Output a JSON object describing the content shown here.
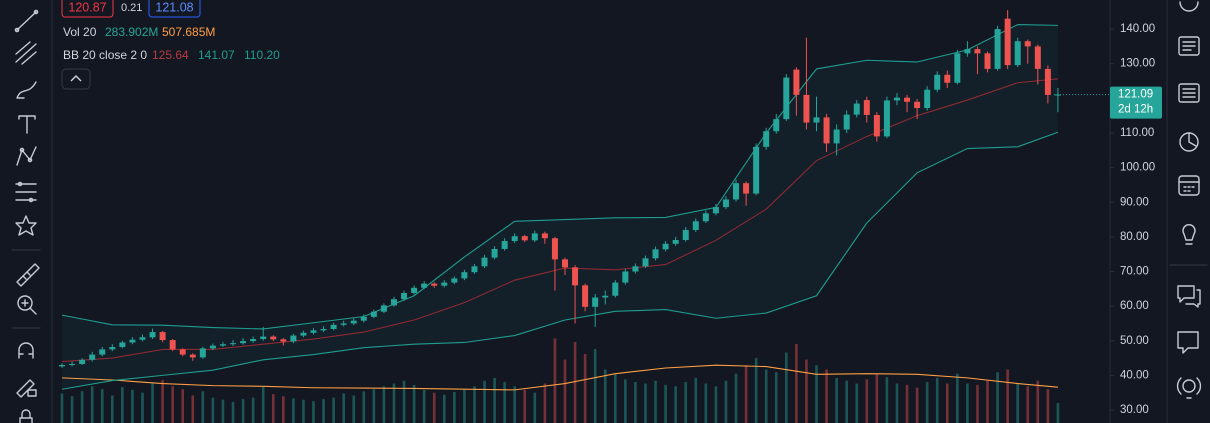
{
  "chart_data": {
    "type": "candlestick",
    "legend": {
      "bid": "120.87",
      "spread": "0.21",
      "ask": "121.08",
      "vol_title": "Vol 20",
      "vol_last": "283.902M",
      "vol_ma": "507.685M",
      "bb_title": "BB 20 close 2 0",
      "bb_basis": "125.64",
      "bb_upper": "141.07",
      "bb_lower": "110.20"
    },
    "countdown": "2d 12h",
    "up_color": "#26a69a",
    "down_color": "#ef5350",
    "ylim": [
      26.25,
      148.4
    ],
    "yticks": [
      {
        "value": 30,
        "label": "30.00"
      },
      {
        "value": 40,
        "label": "40.00"
      },
      {
        "value": 50,
        "label": "50.00"
      },
      {
        "value": 60,
        "label": "60.00"
      },
      {
        "value": 70,
        "label": "70.00"
      },
      {
        "value": 80,
        "label": "80.00"
      },
      {
        "value": 90,
        "label": "90.00"
      },
      {
        "value": 100,
        "label": "100.00"
      },
      {
        "value": 110,
        "label": "110.00"
      },
      {
        "value": 120,
        "label": "120.00"
      },
      {
        "value": 130,
        "label": "130.00"
      },
      {
        "value": 140,
        "label": "140.00"
      }
    ],
    "y2lim": [
      0,
      6000
    ],
    "grid": false,
    "open": [
      42.6,
      43.0,
      43.3,
      44.5,
      46.0,
      47.5,
      48.2,
      49.5,
      50.3,
      51.0,
      52.5,
      50.2,
      47.5,
      46.0,
      45.2,
      47.8,
      48.6,
      49.0,
      49.3,
      49.9,
      50.5,
      51.2,
      50.4,
      49.8,
      51.5,
      52.3,
      53.0,
      53.4,
      54.6,
      55.0,
      55.8,
      56.9,
      58.4,
      60.2,
      62.0,
      63.8,
      65.3,
      66.5,
      65.9,
      66.8,
      68.0,
      69.8,
      71.5,
      74.0,
      76.5,
      78.8,
      80.2,
      79.0,
      81.0,
      79.6,
      73.5,
      71.2,
      66.0,
      59.8,
      62.5,
      63.0,
      66.8,
      70.0,
      71.5,
      73.8,
      76.4,
      78.0,
      79.1,
      82.0,
      84.5,
      86.8,
      88.6,
      90.8,
      95.5,
      92.5,
      106.0,
      110.5,
      114.0,
      128.3,
      121.0,
      113.0,
      114.5,
      107.0,
      111.0,
      115.3,
      119.5,
      115.2,
      109.0,
      119.4,
      120.2,
      119.0,
      117.2,
      122.5,
      126.8,
      124.5,
      133.0,
      134.2,
      133.0,
      128.5,
      143.0,
      129.6,
      136.5,
      135.0,
      128.5,
      121.0
    ],
    "high": [
      43.5,
      44.0,
      45.0,
      46.8,
      48.2,
      49.0,
      50.0,
      51.0,
      51.8,
      53.5,
      52.8,
      50.5,
      47.8,
      46.4,
      48.3,
      49.2,
      49.6,
      50.2,
      50.8,
      51.2,
      54.0,
      51.6,
      50.8,
      52.0,
      52.9,
      53.6,
      54.2,
      55.2,
      55.8,
      56.5,
      57.6,
      59.0,
      60.8,
      62.7,
      64.5,
      66.0,
      67.2,
      66.9,
      67.5,
      68.6,
      70.5,
      72.2,
      74.8,
      77.3,
      79.6,
      81.0,
      80.6,
      81.8,
      81.5,
      80.0,
      74.0,
      71.8,
      66.5,
      63.5,
      64.5,
      67.5,
      70.8,
      72.3,
      74.6,
      77.2,
      78.8,
      80.0,
      82.8,
      85.3,
      87.6,
      89.5,
      91.8,
      96.5,
      96.0,
      107.0,
      111.5,
      115.5,
      127.0,
      129.0,
      137.5,
      120.5,
      115.5,
      112.5,
      116.5,
      119.5,
      120.5,
      116.0,
      120.5,
      121.5,
      121.0,
      119.8,
      123.5,
      127.8,
      128.0,
      134.0,
      136.5,
      135.0,
      133.5,
      141.0,
      145.5,
      137.5,
      137.0,
      135.5,
      129.5,
      123.0
    ],
    "low": [
      42.2,
      42.6,
      43.0,
      44.0,
      45.5,
      47.0,
      47.8,
      49.0,
      49.8,
      50.5,
      49.6,
      47.0,
      45.5,
      44.2,
      44.8,
      47.3,
      48.2,
      48.5,
      48.9,
      49.4,
      50.0,
      49.9,
      48.6,
      49.3,
      51.0,
      51.8,
      52.5,
      53.0,
      54.1,
      54.5,
      55.3,
      56.5,
      58.0,
      59.8,
      61.5,
      63.3,
      64.9,
      65.3,
      65.4,
      66.3,
      67.5,
      69.3,
      71.0,
      73.5,
      76.0,
      78.2,
      78.5,
      78.5,
      78.0,
      64.5,
      69.0,
      55.0,
      58.5,
      54.0,
      60.5,
      62.5,
      66.2,
      69.4,
      71.0,
      73.2,
      75.8,
      77.4,
      78.6,
      81.4,
      84.0,
      86.2,
      88.0,
      90.2,
      89.0,
      92.0,
      105.2,
      109.8,
      113.5,
      115.0,
      111.0,
      110.5,
      104.5,
      103.5,
      110.0,
      114.5,
      113.0,
      107.5,
      108.5,
      118.0,
      116.0,
      114.0,
      116.5,
      121.8,
      123.0,
      124.0,
      132.0,
      127.0,
      127.5,
      128.0,
      128.5,
      129.0,
      130.0,
      124.0,
      118.5,
      116.0
    ],
    "close": [
      43.0,
      43.3,
      44.5,
      46.0,
      47.5,
      48.2,
      49.5,
      50.3,
      51.0,
      52.5,
      50.2,
      47.5,
      46.0,
      45.2,
      47.8,
      48.6,
      49.0,
      49.3,
      49.9,
      50.5,
      51.2,
      50.4,
      49.8,
      51.5,
      52.3,
      53.0,
      53.4,
      54.6,
      55.0,
      55.8,
      56.9,
      58.4,
      60.2,
      62.0,
      63.8,
      65.3,
      66.5,
      65.9,
      66.8,
      68.0,
      69.8,
      71.5,
      74.0,
      76.5,
      78.8,
      80.2,
      79.0,
      81.0,
      79.6,
      73.5,
      71.2,
      66.0,
      59.8,
      62.5,
      63.0,
      66.8,
      70.0,
      71.5,
      73.8,
      76.4,
      78.0,
      79.1,
      82.0,
      84.5,
      86.8,
      88.6,
      90.8,
      95.5,
      92.5,
      106.0,
      110.5,
      114.0,
      126.0,
      121.0,
      113.0,
      114.5,
      107.0,
      111.0,
      115.3,
      118.5,
      115.2,
      109.0,
      119.4,
      120.2,
      119.0,
      117.2,
      122.5,
      126.8,
      124.5,
      133.0,
      134.2,
      133.0,
      128.5,
      140.0,
      129.6,
      136.5,
      135.0,
      128.5,
      121.0,
      121.09
    ],
    "volume": [
      420,
      380,
      450,
      520,
      480,
      390,
      510,
      470,
      430,
      560,
      610,
      520,
      480,
      390,
      450,
      360,
      330,
      300,
      340,
      360,
      520,
      410,
      380,
      350,
      330,
      310,
      340,
      360,
      420,
      390,
      450,
      480,
      520,
      560,
      600,
      540,
      470,
      430,
      400,
      440,
      480,
      520,
      600,
      640,
      580,
      520,
      470,
      430,
      560,
      1200,
      900,
      1150,
      980,
      1050,
      760,
      700,
      620,
      580,
      560,
      600,
      540,
      520,
      580,
      640,
      560,
      520,
      600,
      700,
      820,
      920,
      760,
      720,
      1000,
      1120,
      900,
      820,
      760,
      640,
      600,
      560,
      620,
      700,
      650,
      560,
      540,
      500,
      580,
      640,
      560,
      700,
      560,
      540,
      600,
      720,
      760,
      560,
      520,
      600,
      480,
      283.902
    ],
    "indicators": {
      "x": [
        0,
        5,
        10,
        15,
        20,
        25,
        30,
        35,
        40,
        45,
        50,
        55,
        60,
        65,
        70,
        75,
        80,
        85,
        90,
        95,
        99
      ],
      "bb_upper": [
        57.4,
        54.6,
        54.5,
        53.8,
        53.4,
        55.2,
        57.0,
        63.0,
        74.2,
        84.5,
        85.0,
        85.5,
        85.6,
        88.5,
        110.0,
        128.5,
        131.0,
        130.5,
        134.0,
        141.3,
        141.07
      ],
      "bb_basis": [
        44.0,
        45.0,
        47.5,
        47.5,
        49.0,
        50.5,
        52.5,
        56.0,
        61.0,
        67.5,
        71.0,
        70.5,
        72.0,
        79.0,
        88.0,
        102.0,
        109.0,
        115.0,
        119.5,
        124.5,
        125.64
      ],
      "bb_lower": [
        36.0,
        38.5,
        40.0,
        41.5,
        44.5,
        46.0,
        48.0,
        49.0,
        49.5,
        51.5,
        56.0,
        58.5,
        59.0,
        56.5,
        58.0,
        63.0,
        84.0,
        98.5,
        105.5,
        106.0,
        110.2
      ],
      "volume_ma": [
        640,
        610,
        560,
        530,
        520,
        500,
        495,
        490,
        480,
        470,
        560,
        700,
        780,
        820,
        800,
        690,
        700,
        690,
        640,
        560,
        507.685
      ]
    }
  }
}
